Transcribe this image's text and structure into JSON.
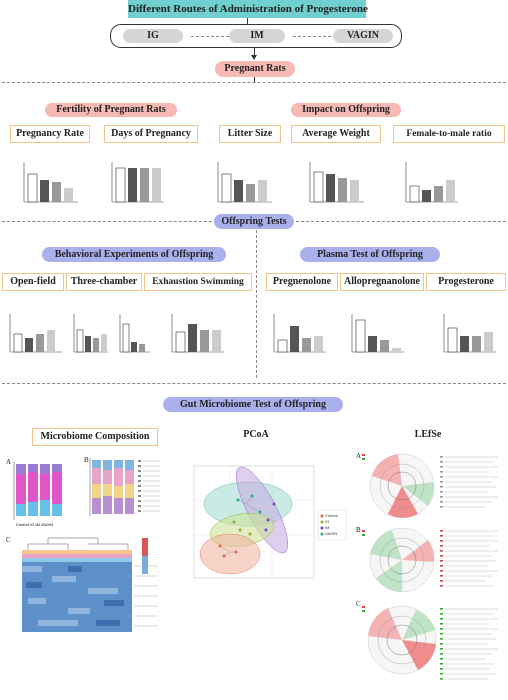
{
  "title": "Different Routes of Administration of Progesterone",
  "routes": [
    "IG",
    "IM",
    "VAGIN"
  ],
  "pregnant_rats": "Pregnant Rats",
  "fertility_header": "Fertility of Pregnant Rats",
  "offspring_impact_header": "Impact on Offspring",
  "fertility_metrics": [
    "Pregnancy Rate",
    "Days of Pregnancy",
    "Litter Size"
  ],
  "offspring_metrics": [
    "Average Weight",
    "Female-to-male ratio"
  ],
  "offspring_tests": "Offspring Tests",
  "behavioral_header": "Behavioral Experiments of Offspring",
  "plasma_header": "Plasma Test of Offspring",
  "behavioral_tests": [
    "Open-field",
    "Three-chamber",
    "Exhaustion Swimming"
  ],
  "plasma_tests": [
    "Pregnenolone",
    "Allopregnanolone",
    "Progesterone"
  ],
  "gut_header": "Gut Microbiome Test of Offspring",
  "gut_sections": [
    "Microbiome Composition",
    "PCoA",
    "LEfSe"
  ],
  "panel_letters": [
    "A",
    "B",
    "C"
  ],
  "groups": [
    "Control",
    "IG",
    "IM",
    "VAGIN"
  ],
  "colors": {
    "teal": "#6fd0cf",
    "pink": "#f6b9b3",
    "blue": "#aab0ec",
    "box_border": "#f1c48a"
  }
}
